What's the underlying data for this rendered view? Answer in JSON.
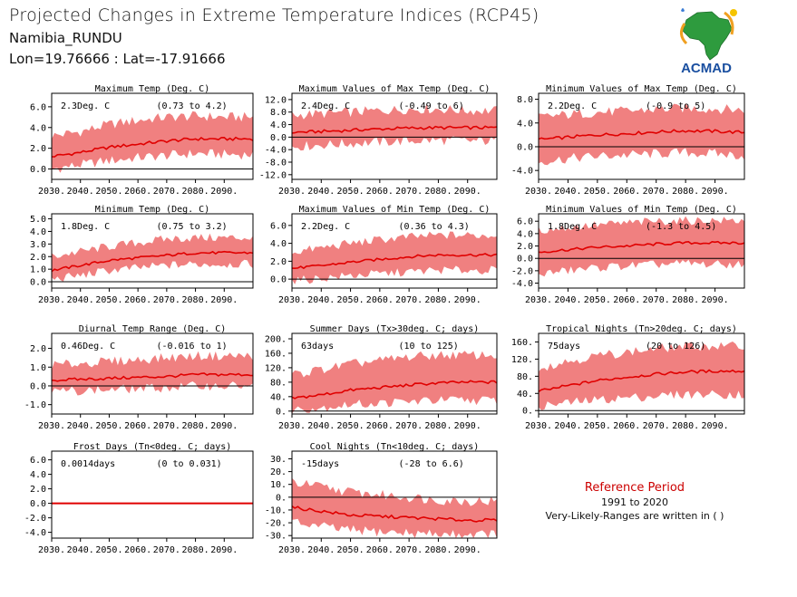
{
  "header": {
    "title": "Projected Changes in Extreme Temperature Indices (RCP45)",
    "location": "Namibia_RUNDU",
    "coords": "Lon=19.76666 : Lat=-17.91666"
  },
  "logo": {
    "text": "ACMAD",
    "icon": "africa-map-logo"
  },
  "reference": {
    "title": "Reference Period",
    "years": "1991 to 2020",
    "note": "Very-Likely-Ranges are written in ( )"
  },
  "colors": {
    "band": "#f08080",
    "line": "#e00000",
    "zero": "#000000"
  },
  "chart_data": [
    {
      "type": "area",
      "title": "Maximum Temp (Deg. C)",
      "mean_label": "2.3Deg. C",
      "range_label": "(0.73 to 4.2)",
      "x_ticks": [
        "2030.",
        "2040.",
        "2050.",
        "2060.",
        "2070.",
        "2080.",
        "2090."
      ],
      "y_ticks": [
        "6.0",
        "4.0",
        "2.0",
        "0.0"
      ],
      "ylim": [
        -1,
        7.3
      ],
      "x_range": [
        2030,
        2100
      ],
      "mean": [
        [
          2030,
          1.2
        ],
        [
          2040,
          1.6
        ],
        [
          2050,
          2.1
        ],
        [
          2060,
          2.4
        ],
        [
          2070,
          2.7
        ],
        [
          2080,
          2.9
        ],
        [
          2090,
          2.9
        ],
        [
          2100,
          2.9
        ]
      ],
      "lower": [
        [
          2030,
          0.0
        ],
        [
          2040,
          0.4
        ],
        [
          2050,
          0.8
        ],
        [
          2060,
          1.1
        ],
        [
          2070,
          1.3
        ],
        [
          2080,
          1.5
        ],
        [
          2090,
          1.4
        ],
        [
          2100,
          1.4
        ]
      ],
      "upper": [
        [
          2030,
          3.2
        ],
        [
          2040,
          3.6
        ],
        [
          2050,
          4.3
        ],
        [
          2060,
          4.7
        ],
        [
          2070,
          5.0
        ],
        [
          2080,
          5.1
        ],
        [
          2090,
          5.0
        ],
        [
          2100,
          5.0
        ]
      ]
    },
    {
      "type": "area",
      "title": "Maximum Values of Max Temp (Deg. C)",
      "mean_label": "2.4Deg. C",
      "range_label": "(-0.49 to 6)",
      "x_ticks": [
        "2030.",
        "2040.",
        "2050.",
        "2060.",
        "2070.",
        "2080.",
        "2090."
      ],
      "y_ticks": [
        "12.0",
        "8.0",
        "4.0",
        "0.0",
        "-4.0",
        "-8.0",
        "-12.0"
      ],
      "ylim": [
        -13.5,
        14
      ],
      "x_range": [
        2030,
        2100
      ],
      "mean": [
        [
          2030,
          1.5
        ],
        [
          2040,
          1.8
        ],
        [
          2050,
          2.2
        ],
        [
          2060,
          2.6
        ],
        [
          2070,
          2.9
        ],
        [
          2080,
          3.0
        ],
        [
          2090,
          3.0
        ],
        [
          2100,
          3.0
        ]
      ],
      "lower": [
        [
          2030,
          -3.0
        ],
        [
          2040,
          -2.5
        ],
        [
          2050,
          -2.0
        ],
        [
          2060,
          -1.6
        ],
        [
          2070,
          -1.2
        ],
        [
          2080,
          -1.0
        ],
        [
          2090,
          -1.2
        ],
        [
          2100,
          -1.2
        ]
      ],
      "upper": [
        [
          2030,
          7.0
        ],
        [
          2040,
          7.5
        ],
        [
          2050,
          8.0
        ],
        [
          2060,
          8.5
        ],
        [
          2070,
          9.0
        ],
        [
          2080,
          9.0
        ],
        [
          2090,
          8.5
        ],
        [
          2100,
          8.5
        ]
      ]
    },
    {
      "type": "area",
      "title": "Minimum Values of Max Temp (Deg. C)",
      "mean_label": "2.2Deg. C",
      "range_label": "(-0.9 to 5)",
      "x_ticks": [
        "2030.",
        "2040.",
        "2050.",
        "2060.",
        "2070.",
        "2080.",
        "2090."
      ],
      "y_ticks": [
        "8.0",
        "4.0",
        "0.0",
        "-4.0"
      ],
      "ylim": [
        -5.5,
        9
      ],
      "x_range": [
        2030,
        2100
      ],
      "mean": [
        [
          2030,
          1.2
        ],
        [
          2040,
          1.6
        ],
        [
          2050,
          2.0
        ],
        [
          2060,
          2.2
        ],
        [
          2070,
          2.5
        ],
        [
          2080,
          2.7
        ],
        [
          2090,
          2.6
        ],
        [
          2100,
          2.4
        ]
      ],
      "lower": [
        [
          2030,
          -2.5
        ],
        [
          2040,
          -2.0
        ],
        [
          2050,
          -1.6
        ],
        [
          2060,
          -1.4
        ],
        [
          2070,
          -1.2
        ],
        [
          2080,
          -1.0
        ],
        [
          2090,
          -1.2
        ],
        [
          2100,
          -1.5
        ]
      ],
      "upper": [
        [
          2030,
          5.0
        ],
        [
          2040,
          5.4
        ],
        [
          2050,
          5.8
        ],
        [
          2060,
          6.0
        ],
        [
          2070,
          6.3
        ],
        [
          2080,
          6.5
        ],
        [
          2090,
          6.4
        ],
        [
          2100,
          6.2
        ]
      ]
    },
    {
      "type": "area",
      "title": "Minimum Temp (Deg. C)",
      "mean_label": "1.8Deg. C",
      "range_label": "(0.75 to 3.2)",
      "x_ticks": [
        "2030.",
        "2040.",
        "2050.",
        "2060.",
        "2070.",
        "2080.",
        "2090."
      ],
      "y_ticks": [
        "5.0",
        "4.0",
        "3.0",
        "2.0",
        "1.0",
        "0.0"
      ],
      "ylim": [
        -0.5,
        5.4
      ],
      "x_range": [
        2030,
        2100
      ],
      "mean": [
        [
          2030,
          0.9
        ],
        [
          2040,
          1.3
        ],
        [
          2050,
          1.7
        ],
        [
          2060,
          1.9
        ],
        [
          2070,
          2.1
        ],
        [
          2080,
          2.3
        ],
        [
          2090,
          2.3
        ],
        [
          2100,
          2.3
        ]
      ],
      "lower": [
        [
          2030,
          0.2
        ],
        [
          2040,
          0.5
        ],
        [
          2050,
          0.9
        ],
        [
          2060,
          1.1
        ],
        [
          2070,
          1.3
        ],
        [
          2080,
          1.4
        ],
        [
          2090,
          1.4
        ],
        [
          2100,
          1.4
        ]
      ],
      "upper": [
        [
          2030,
          2.0
        ],
        [
          2040,
          2.4
        ],
        [
          2050,
          2.8
        ],
        [
          2060,
          3.1
        ],
        [
          2070,
          3.4
        ],
        [
          2080,
          3.5
        ],
        [
          2090,
          3.5
        ],
        [
          2100,
          3.5
        ]
      ]
    },
    {
      "type": "area",
      "title": "Maximum Values of Min Temp (Deg. C)",
      "mean_label": "2.2Deg. C",
      "range_label": "(0.36 to 4.3)",
      "x_ticks": [
        "2030.",
        "2040.",
        "2050.",
        "2060.",
        "2070.",
        "2080.",
        "2090."
      ],
      "y_ticks": [
        "6.0",
        "4.0",
        "2.0",
        "0.0"
      ],
      "ylim": [
        -1,
        7.3
      ],
      "x_range": [
        2030,
        2100
      ],
      "mean": [
        [
          2030,
          1.2
        ],
        [
          2040,
          1.5
        ],
        [
          2050,
          1.9
        ],
        [
          2060,
          2.2
        ],
        [
          2070,
          2.5
        ],
        [
          2080,
          2.7
        ],
        [
          2090,
          2.7
        ],
        [
          2100,
          2.7
        ]
      ],
      "lower": [
        [
          2030,
          -0.2
        ],
        [
          2040,
          0.1
        ],
        [
          2050,
          0.4
        ],
        [
          2060,
          0.6
        ],
        [
          2070,
          0.8
        ],
        [
          2080,
          1.0
        ],
        [
          2090,
          1.0
        ],
        [
          2100,
          1.0
        ]
      ],
      "upper": [
        [
          2030,
          3.0
        ],
        [
          2040,
          3.5
        ],
        [
          2050,
          4.0
        ],
        [
          2060,
          4.4
        ],
        [
          2070,
          4.7
        ],
        [
          2080,
          4.9
        ],
        [
          2090,
          4.9
        ],
        [
          2100,
          4.9
        ]
      ]
    },
    {
      "type": "area",
      "title": "Minimum Values of Min Temp (Deg. C)",
      "mean_label": "1.8Deg. C",
      "range_label": "(-1.3 to 4.5)",
      "x_ticks": [
        "2030.",
        "2040.",
        "2050.",
        "2060.",
        "2070.",
        "2080.",
        "2090."
      ],
      "y_ticks": [
        "6.0",
        "4.0",
        "2.0",
        "0.0",
        "-2.0",
        "-4.0"
      ],
      "ylim": [
        -4.8,
        7.2
      ],
      "x_range": [
        2030,
        2100
      ],
      "mean": [
        [
          2030,
          1.0
        ],
        [
          2040,
          1.4
        ],
        [
          2050,
          1.8
        ],
        [
          2060,
          2.0
        ],
        [
          2070,
          2.3
        ],
        [
          2080,
          2.5
        ],
        [
          2090,
          2.5
        ],
        [
          2100,
          2.5
        ]
      ],
      "lower": [
        [
          2030,
          -2.5
        ],
        [
          2040,
          -2.0
        ],
        [
          2050,
          -1.5
        ],
        [
          2060,
          -1.2
        ],
        [
          2070,
          -1.0
        ],
        [
          2080,
          -0.8
        ],
        [
          2090,
          -1.0
        ],
        [
          2100,
          -1.0
        ]
      ],
      "upper": [
        [
          2030,
          4.5
        ],
        [
          2040,
          5.0
        ],
        [
          2050,
          5.4
        ],
        [
          2060,
          5.7
        ],
        [
          2070,
          6.0
        ],
        [
          2080,
          6.1
        ],
        [
          2090,
          6.1
        ],
        [
          2100,
          6.1
        ]
      ]
    },
    {
      "type": "area",
      "title": "Diurnal Temp Range (Deg. C)",
      "mean_label": "0.46Deg. C",
      "range_label": "(-0.016 to 1)",
      "x_ticks": [
        "2030.",
        "2040.",
        "2050.",
        "2060.",
        "2070.",
        "2080.",
        "2090."
      ],
      "y_ticks": [
        "2.0",
        "1.0",
        "0.0",
        "-1.0"
      ],
      "ylim": [
        -1.5,
        2.8
      ],
      "x_range": [
        2030,
        2100
      ],
      "mean": [
        [
          2030,
          0.3
        ],
        [
          2040,
          0.35
        ],
        [
          2050,
          0.4
        ],
        [
          2060,
          0.45
        ],
        [
          2070,
          0.5
        ],
        [
          2080,
          0.6
        ],
        [
          2090,
          0.6
        ],
        [
          2100,
          0.6
        ]
      ],
      "lower": [
        [
          2030,
          -0.3
        ],
        [
          2040,
          -0.25
        ],
        [
          2050,
          -0.2
        ],
        [
          2060,
          -0.15
        ],
        [
          2070,
          -0.1
        ],
        [
          2080,
          0.0
        ],
        [
          2090,
          0.0
        ],
        [
          2100,
          0.0
        ]
      ],
      "upper": [
        [
          2030,
          1.1
        ],
        [
          2040,
          1.2
        ],
        [
          2050,
          1.3
        ],
        [
          2060,
          1.4
        ],
        [
          2070,
          1.5
        ],
        [
          2080,
          1.6
        ],
        [
          2090,
          1.6
        ],
        [
          2100,
          1.6
        ]
      ]
    },
    {
      "type": "area",
      "title": "Summer Days (Tx>30deg. C; days)",
      "mean_label": "63days",
      "range_label": "(10 to 125)",
      "x_ticks": [
        "2030.",
        "2040.",
        "2050.",
        "2060.",
        "2070.",
        "2080.",
        "2090."
      ],
      "y_ticks": [
        "200.",
        "160.",
        "120.",
        "80.",
        "40.",
        "0."
      ],
      "ylim": [
        -8,
        215
      ],
      "x_range": [
        2030,
        2100
      ],
      "mean": [
        [
          2030,
          35
        ],
        [
          2040,
          45
        ],
        [
          2050,
          58
        ],
        [
          2060,
          65
        ],
        [
          2070,
          72
        ],
        [
          2080,
          78
        ],
        [
          2090,
          80
        ],
        [
          2100,
          80
        ]
      ],
      "lower": [
        [
          2030,
          5
        ],
        [
          2040,
          10
        ],
        [
          2050,
          18
        ],
        [
          2060,
          22
        ],
        [
          2070,
          26
        ],
        [
          2080,
          30
        ],
        [
          2090,
          30
        ],
        [
          2100,
          30
        ]
      ],
      "upper": [
        [
          2030,
          100
        ],
        [
          2040,
          115
        ],
        [
          2050,
          130
        ],
        [
          2060,
          140
        ],
        [
          2070,
          150
        ],
        [
          2080,
          155
        ],
        [
          2090,
          155
        ],
        [
          2100,
          155
        ]
      ]
    },
    {
      "type": "area",
      "title": "Tropical Nights (Tn>20deg. C; days)",
      "mean_label": "75days",
      "range_label": "(20 to 126)",
      "x_ticks": [
        "2030.",
        "2040.",
        "2050.",
        "2060.",
        "2070.",
        "2080.",
        "2090."
      ],
      "y_ticks": [
        "160.",
        "120.",
        "80.",
        "40.",
        "0."
      ],
      "ylim": [
        -8,
        180
      ],
      "x_range": [
        2030,
        2100
      ],
      "mean": [
        [
          2030,
          45
        ],
        [
          2040,
          58
        ],
        [
          2050,
          70
        ],
        [
          2060,
          78
        ],
        [
          2070,
          85
        ],
        [
          2080,
          90
        ],
        [
          2090,
          92
        ],
        [
          2100,
          92
        ]
      ],
      "lower": [
        [
          2030,
          10
        ],
        [
          2040,
          18
        ],
        [
          2050,
          25
        ],
        [
          2060,
          30
        ],
        [
          2070,
          34
        ],
        [
          2080,
          38
        ],
        [
          2090,
          38
        ],
        [
          2100,
          38
        ]
      ],
      "upper": [
        [
          2030,
          100
        ],
        [
          2040,
          115
        ],
        [
          2050,
          128
        ],
        [
          2060,
          136
        ],
        [
          2070,
          144
        ],
        [
          2080,
          150
        ],
        [
          2090,
          150
        ],
        [
          2100,
          150
        ]
      ]
    },
    {
      "type": "area",
      "title": "Frost Days (Tn<0deg. C; days)",
      "mean_label": "0.0014days",
      "range_label": "(0 to 0.031)",
      "x_ticks": [
        "2030.",
        "2040.",
        "2050.",
        "2060.",
        "2070.",
        "2080.",
        "2090."
      ],
      "y_ticks": [
        "6.0",
        "4.0",
        "2.0",
        "0.0",
        "-2.0",
        "-4.0"
      ],
      "ylim": [
        -4.8,
        7.2
      ],
      "x_range": [
        2030,
        2100
      ],
      "mean": [
        [
          2030,
          0.0
        ],
        [
          2100,
          0.0
        ]
      ],
      "lower": [
        [
          2030,
          0.0
        ],
        [
          2100,
          0.0
        ]
      ],
      "upper": [
        [
          2030,
          0.03
        ],
        [
          2100,
          0.03
        ]
      ]
    },
    {
      "type": "area",
      "title": "Cool Nights (Tn<10deg. C; days)",
      "mean_label": "-15days",
      "range_label": "(-28 to 6.6)",
      "x_ticks": [
        "2030.",
        "2040.",
        "2050.",
        "2060.",
        "2070.",
        "2080.",
        "2090."
      ],
      "y_ticks": [
        "30.",
        "20.",
        "10.",
        "0.",
        "-10.",
        "-20.",
        "-30."
      ],
      "ylim": [
        -32,
        36
      ],
      "x_range": [
        2030,
        2100
      ],
      "mean": [
        [
          2030,
          -8
        ],
        [
          2040,
          -11
        ],
        [
          2050,
          -14
        ],
        [
          2060,
          -15
        ],
        [
          2070,
          -16
        ],
        [
          2080,
          -17
        ],
        [
          2090,
          -18
        ],
        [
          2100,
          -18
        ]
      ],
      "lower": [
        [
          2030,
          -20
        ],
        [
          2040,
          -23
        ],
        [
          2050,
          -26
        ],
        [
          2060,
          -27
        ],
        [
          2070,
          -28
        ],
        [
          2080,
          -29
        ],
        [
          2090,
          -29
        ],
        [
          2100,
          -29
        ]
      ],
      "upper": [
        [
          2030,
          12
        ],
        [
          2040,
          8
        ],
        [
          2050,
          4
        ],
        [
          2060,
          2
        ],
        [
          2070,
          0
        ],
        [
          2080,
          -2
        ],
        [
          2090,
          -3
        ],
        [
          2100,
          -3
        ]
      ]
    }
  ]
}
